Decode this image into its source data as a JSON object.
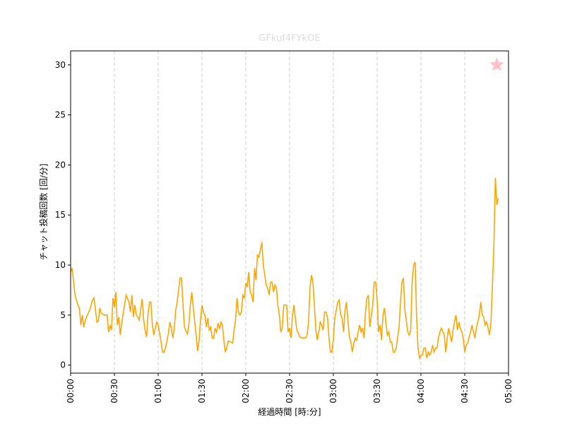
{
  "chart_data": {
    "type": "line",
    "title": "GFkuf4FYkOE",
    "xlabel": "経過時間 [時:分]",
    "ylabel": "チャット投稿回数 [回/分]",
    "xlim": [
      0,
      300
    ],
    "ylim": [
      -0.8,
      31.4
    ],
    "xticks": [
      {
        "value": 0,
        "label": "00:00"
      },
      {
        "value": 30,
        "label": "00:30"
      },
      {
        "value": 60,
        "label": "01:00"
      },
      {
        "value": 90,
        "label": "01:30"
      },
      {
        "value": 120,
        "label": "02:00"
      },
      {
        "value": 150,
        "label": "02:30"
      },
      {
        "value": 180,
        "label": "03:00"
      },
      {
        "value": 210,
        "label": "03:30"
      },
      {
        "value": 240,
        "label": "04:00"
      },
      {
        "value": 270,
        "label": "04:30"
      },
      {
        "value": 300,
        "label": "05:00"
      }
    ],
    "yticks": [
      0,
      5,
      10,
      15,
      20,
      25,
      30
    ],
    "grid": "x",
    "series": [
      {
        "color": "orange",
        "x": [
          0,
          1,
          3,
          5,
          6,
          7,
          8,
          9,
          10,
          13,
          15,
          16,
          17,
          18,
          19,
          20,
          21,
          23,
          25,
          26,
          27,
          28,
          29,
          30,
          31,
          32,
          33,
          34,
          35,
          38,
          40,
          41,
          42,
          43,
          44,
          45,
          46,
          47,
          49,
          50,
          51,
          52,
          53,
          54,
          55,
          56,
          57,
          58,
          59,
          60,
          62,
          63,
          64,
          65,
          66,
          67,
          68,
          69,
          70,
          71,
          72,
          73,
          74,
          75,
          76,
          77,
          78,
          79,
          80,
          81,
          82,
          83,
          84,
          86,
          87,
          88,
          89,
          90,
          91,
          92,
          93,
          94,
          95,
          96,
          97,
          98,
          99,
          100,
          101,
          102,
          103,
          104,
          105,
          106,
          107,
          108,
          110,
          111,
          112,
          113,
          114,
          115,
          116,
          117,
          118,
          119,
          120,
          121,
          122,
          123,
          124,
          125,
          126,
          127,
          128,
          129,
          130,
          131,
          132,
          134,
          135,
          136,
          137,
          138,
          139,
          140,
          141,
          142,
          143,
          144,
          145,
          146,
          147,
          148,
          149,
          150,
          151,
          152,
          153,
          154,
          155,
          156,
          157,
          159,
          160,
          161,
          162,
          163,
          164,
          165,
          166,
          167,
          168,
          169,
          170,
          171,
          172,
          173,
          174,
          175,
          176,
          177,
          178,
          179,
          180,
          181,
          183,
          184,
          185,
          186,
          187,
          188,
          189,
          190,
          191,
          192,
          193,
          194,
          195,
          196,
          197,
          198,
          199,
          200,
          201,
          202,
          203,
          204,
          205,
          207,
          208,
          209,
          210,
          211,
          212,
          213,
          214,
          215,
          216,
          217,
          218,
          219,
          220,
          221,
          222,
          223,
          224,
          225,
          226,
          227,
          228,
          229,
          231,
          232,
          233,
          234,
          235,
          236,
          237,
          238,
          239,
          240,
          241,
          242,
          243,
          244,
          245,
          246,
          247,
          248,
          249,
          250,
          251,
          252,
          253,
          254,
          256,
          257,
          258,
          259,
          260,
          261,
          262,
          263,
          264,
          265,
          266,
          267,
          268,
          269,
          270,
          271,
          272,
          273,
          274,
          275,
          276,
          277,
          278,
          280,
          281,
          282,
          283,
          284,
          285,
          286,
          287,
          288,
          289,
          290,
          291,
          292,
          293
        ],
        "values": [
          9.3,
          9.7,
          7,
          6,
          5.7,
          4,
          5,
          3.8,
          4.5,
          5.5,
          6.5,
          6.7,
          5.5,
          4.3,
          4.4,
          5.7,
          5.2,
          5,
          5,
          3.3,
          4,
          3.5,
          6.7,
          5.8,
          7.3,
          4,
          4.8,
          3,
          4.2,
          7,
          6.3,
          5.3,
          7,
          4.8,
          6,
          5,
          4.8,
          4.5,
          6.6,
          4.6,
          3.5,
          2.8,
          5,
          6.3,
          6.3,
          4,
          3,
          3.7,
          4.3,
          4,
          2.3,
          1.3,
          1.3,
          1.7,
          2.4,
          3.2,
          4.3,
          3.7,
          2.7,
          3.7,
          5.5,
          6.3,
          7.5,
          8.7,
          8.7,
          6,
          3.8,
          3.4,
          3.1,
          4,
          6,
          7.3,
          5.8,
          3,
          1.4,
          2.5,
          4.5,
          6,
          5.3,
          5,
          3.8,
          4.7,
          3.5,
          3.8,
          2.7,
          2.7,
          3.7,
          3.3,
          4.2,
          3.6,
          4.3,
          4,
          2.5,
          1.3,
          1.8,
          2.4,
          2.3,
          2.2,
          3.5,
          4.5,
          6.7,
          5.3,
          5,
          5.3,
          7,
          6.7,
          8.2,
          7.8,
          9.3,
          7.3,
          7,
          6.3,
          9.7,
          8.5,
          11,
          10.8,
          11.5,
          12.3,
          10,
          8,
          7.7,
          7,
          8.3,
          8.3,
          7.3,
          8,
          7.7,
          6,
          5,
          3.3,
          3.7,
          6,
          6,
          6,
          3.3,
          3.7,
          2.7,
          5,
          6,
          4.7,
          3.5,
          3.2,
          2.8,
          2.7,
          2.7,
          2.7,
          3,
          4.3,
          7.7,
          9,
          8.3,
          6,
          3.5,
          2.5,
          3.3,
          4.3,
          4,
          3.5,
          5.3,
          5.3,
          4.8,
          2.7,
          1.3,
          1.3,
          2.5,
          4.7,
          6.3,
          6.5,
          5,
          4.7,
          3.3,
          5.5,
          6.3,
          4.5,
          2.8,
          2.3,
          1.3,
          2.2,
          2.7,
          2.5,
          3.3,
          4,
          3.3,
          3.7,
          2.7,
          5.3,
          6.7,
          7,
          3.8,
          6,
          8.3,
          8.3,
          6.5,
          3.3,
          4,
          2.5,
          5,
          5.7,
          4.3,
          3,
          3.3,
          2.3,
          2.3,
          1.3,
          1.3,
          1.7,
          2.7,
          3.7,
          6.3,
          8.3,
          8.7,
          5.5,
          3.3,
          3,
          3.5,
          8.3,
          10,
          10.3,
          5,
          1.7,
          0.7,
          1,
          1,
          1.7,
          1.7,
          0.7,
          1.3,
          1,
          1.3,
          2,
          1.3,
          1.7,
          1.7,
          2.7,
          3.3,
          3.7,
          3,
          1.3,
          2.7,
          3.7,
          3,
          2.3,
          3.5,
          4.3,
          5,
          3.5,
          4.3,
          3.7,
          3.3,
          2.7,
          1.3,
          2,
          2.2,
          2.8,
          3.3,
          4,
          3.3,
          2.7,
          3.7,
          5,
          6.3,
          5,
          4.8,
          4,
          4.3,
          3.7,
          3,
          4.3,
          8,
          12,
          18.7,
          16,
          16.7
        ]
      }
    ],
    "marker": {
      "x": 292,
      "y": 30,
      "color": "pink"
    }
  }
}
